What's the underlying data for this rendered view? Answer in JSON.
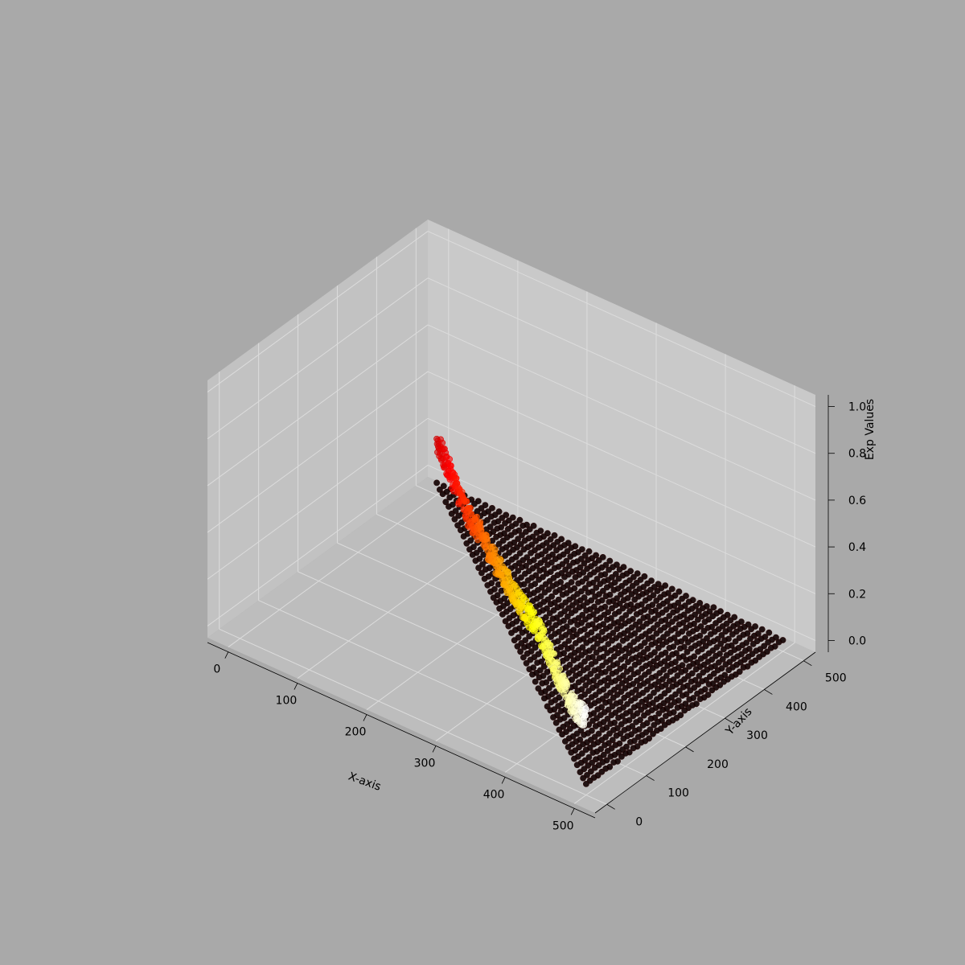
{
  "chart_data": {
    "type": "scatter",
    "projection": "3d",
    "title": "",
    "xlabel": "X-axis",
    "ylabel": "Y-axis",
    "zlabel": "Exp Values",
    "xlim": [
      -30,
      530
    ],
    "ylim": [
      -30,
      530
    ],
    "zlim": [
      -0.05,
      1.05
    ],
    "xticks": [
      0,
      100,
      200,
      300,
      400,
      500
    ],
    "yticks": [
      0,
      100,
      200,
      300,
      400,
      500
    ],
    "zticks": [
      "0.0",
      "0.2",
      "0.4",
      "0.6",
      "0.8",
      "1.0"
    ],
    "zticks_values": [
      0.0,
      0.2,
      0.4,
      0.6,
      0.8,
      1.0
    ],
    "grid": true,
    "colormap": "hot",
    "point_alpha": 0.6,
    "figure_background": "#a9a9a9",
    "pane_colors": [
      "#c9c9c9",
      "#c2c2c2",
      "#bdbdbd"
    ],
    "grid_color": "#dcdcdc",
    "series": [
      {
        "name": "",
        "description_source": "x+y>=500 region, z≈0",
        "points_region": {
          "x_range": [
            0,
            500
          ],
          "y_range": [
            0,
            500
          ],
          "condition": "x + y >= 500",
          "z": 0.0
        }
      },
      {
        "name": "",
        "points_along_diagonal": [
          {
            "x": 0,
            "y": 500,
            "z": 0.18
          },
          {
            "x": 50,
            "y": 450,
            "z": 0.16
          },
          {
            "x": 100,
            "y": 400,
            "z": 0.13
          },
          {
            "x": 150,
            "y": 350,
            "z": 0.16
          },
          {
            "x": 200,
            "y": 300,
            "z": 0.17
          },
          {
            "x": 250,
            "y": 250,
            "z": 0.19
          },
          {
            "x": 300,
            "y": 200,
            "z": 0.22
          },
          {
            "x": 350,
            "y": 150,
            "z": 0.25
          },
          {
            "x": 400,
            "y": 100,
            "z": 0.23
          },
          {
            "x": 450,
            "y": 50,
            "z": 0.21
          },
          {
            "x": 500,
            "y": 0,
            "z": 0.28
          }
        ],
        "z_noise": 0.05,
        "color_by": "x"
      }
    ]
  }
}
